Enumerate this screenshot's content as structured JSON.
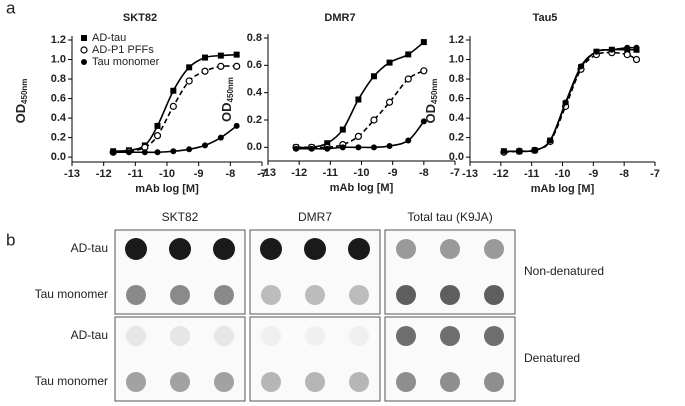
{
  "panel_labels": [
    "a",
    "b"
  ],
  "chart_data": [
    {
      "type": "line",
      "title": "SKT82",
      "xlabel": "mAb log [M]",
      "ylabel": {
        "main": "OD",
        "sub": "450nm"
      },
      "xlim": [
        -13,
        -7
      ],
      "xticks": [
        -13,
        -12,
        -11,
        -10,
        -9,
        -8,
        -7
      ],
      "ylim": [
        -0.05,
        1.2
      ],
      "yticks": [
        {
          "value": 0,
          "label": "0.0"
        },
        0.2,
        0.4,
        0.6,
        0.8,
        {
          "value": 1,
          "label": "1.0"
        },
        1.2
      ],
      "legend": "upper left",
      "x": [
        -11.7,
        -11.2,
        -10.7,
        -10.3,
        -9.8,
        -9.3,
        -8.8,
        -8.3,
        -7.8
      ],
      "series": [
        {
          "name": "AD-tau",
          "color": "#000000",
          "marker": "square",
          "line_style": "solid",
          "values": [
            0.06,
            0.07,
            0.12,
            0.32,
            0.68,
            0.92,
            1.02,
            1.04,
            1.05
          ]
        },
        {
          "name": "AD-P1 PFFs",
          "color": "#000000",
          "marker": "open-circle",
          "line_style": "dashed",
          "values": [
            0.05,
            0.06,
            0.1,
            0.22,
            0.52,
            0.78,
            0.88,
            0.93,
            0.93
          ]
        },
        {
          "name": "Tau monomer",
          "color": "#000000",
          "marker": "circle",
          "line_style": "solid",
          "values": [
            0.05,
            0.05,
            0.05,
            0.05,
            0.06,
            0.08,
            0.12,
            0.2,
            0.32
          ]
        }
      ]
    },
    {
      "type": "line",
      "title": "DMR7",
      "xlabel": "mAb log [M]",
      "ylabel": {
        "main": "OD",
        "sub": "450nm"
      },
      "xlim": [
        -13,
        -7
      ],
      "xticks": [
        -13,
        -12,
        -11,
        -10,
        -9,
        -8,
        -7
      ],
      "ylim": [
        -0.1,
        0.8
      ],
      "yticks": [
        {
          "value": 0,
          "label": "0.0"
        },
        0.2,
        0.4,
        0.6,
        0.8
      ],
      "x": [
        -12.1,
        -11.6,
        -11.1,
        -10.6,
        -10.1,
        -9.6,
        -9.1,
        -8.5,
        -8.0
      ],
      "series": [
        {
          "color": "#000000",
          "marker": "square",
          "line_style": "solid",
          "values": [
            0.0,
            0.0,
            0.03,
            0.13,
            0.35,
            0.52,
            0.62,
            0.68,
            0.77
          ]
        },
        {
          "color": "#000000",
          "marker": "open-circle",
          "line_style": "dashed",
          "values": [
            0.0,
            0.0,
            0.0,
            0.02,
            0.08,
            0.2,
            0.33,
            0.5,
            0.56
          ]
        },
        {
          "color": "#000000",
          "marker": "circle",
          "line_style": "solid",
          "values": [
            -0.01,
            -0.01,
            -0.01,
            0.0,
            0.0,
            0.0,
            0.01,
            0.05,
            0.19
          ]
        }
      ]
    },
    {
      "type": "line",
      "title": "Tau5",
      "xlabel": "mAb log [M]",
      "ylabel": {
        "main": "OD",
        "sub": "450nm"
      },
      "xlim": [
        -13,
        -7
      ],
      "xticks": [
        -13,
        -12,
        -11,
        -10,
        -9,
        -8,
        -7
      ],
      "ylim": [
        -0.05,
        1.2
      ],
      "yticks": [
        {
          "value": 0,
          "label": "0.0"
        },
        0.2,
        0.4,
        0.6,
        0.8,
        {
          "value": 1,
          "label": "1.0"
        },
        1.2
      ],
      "x": [
        -11.9,
        -11.4,
        -10.9,
        -10.4,
        -9.9,
        -9.4,
        -8.9,
        -8.4,
        -7.9,
        -7.6
      ],
      "series": [
        {
          "color": "#000000",
          "marker": "square",
          "line_style": "solid",
          "values": [
            0.06,
            0.06,
            0.07,
            0.17,
            0.55,
            0.92,
            1.08,
            1.1,
            1.1,
            1.1
          ]
        },
        {
          "color": "#000000",
          "marker": "open-circle",
          "line_style": "dashed",
          "values": [
            0.05,
            0.06,
            0.07,
            0.16,
            0.52,
            0.9,
            1.05,
            1.07,
            1.05,
            1.0
          ]
        },
        {
          "color": "#000000",
          "marker": "circle",
          "line_style": "solid",
          "values": [
            0.06,
            0.06,
            0.07,
            0.17,
            0.56,
            0.93,
            1.08,
            1.1,
            1.12,
            1.12
          ]
        }
      ]
    }
  ],
  "blot": {
    "columns": [
      "SKT82",
      "DMR7",
      "Total tau (K9JA)"
    ],
    "groups": [
      {
        "label": "Non-denatured",
        "rows": [
          "AD-tau",
          "Tau monomer"
        ],
        "dot_colors": [
          [
            "#1a1a1a",
            "#8a8a8a"
          ],
          [
            "#1a1a1a",
            "#bcbcbc"
          ],
          [
            "#9a9a9a",
            "#5e5e5e"
          ]
        ]
      },
      {
        "label": "Denatured",
        "rows": [
          "AD-tau",
          "Tau monomer"
        ],
        "dot_colors": [
          [
            "#e6e6e6",
            "#a2a2a2"
          ],
          [
            "#f0f0f0",
            "#b6b6b6"
          ],
          [
            "#6e6e6e",
            "#8e8e8e"
          ]
        ]
      }
    ]
  }
}
